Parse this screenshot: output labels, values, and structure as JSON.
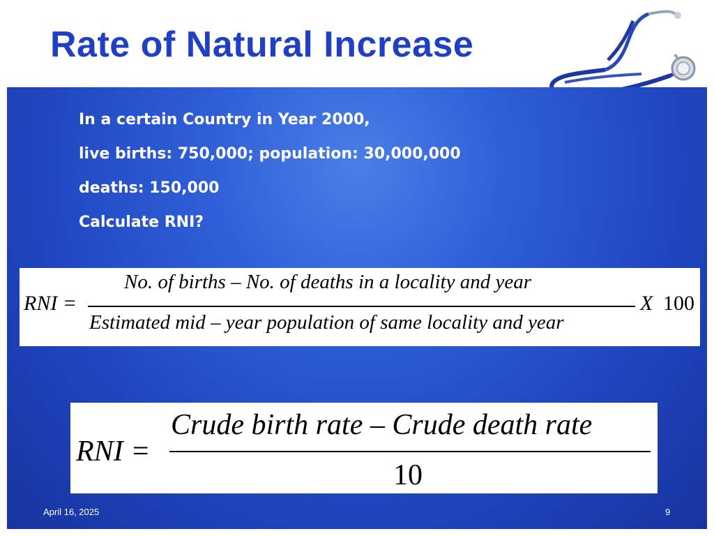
{
  "slide": {
    "title": "Rate of Natural Increase",
    "lines": [
      "In a certain Country in Year 2000,",
      "live births: 750,000; population: 30,000,000",
      "deaths: 150,000",
      "Calculate RNI?"
    ],
    "formula1": {
      "lhs": "RNI =",
      "numerator": "No.  of  births – No.  of  deaths  in  a  locality  and  year",
      "denominator": "Estimated  mid – year  population  of  same  locality  and  year",
      "multiplier_symbol": "X",
      "multiplier_value": "100"
    },
    "formula2": {
      "lhs": "RNI =",
      "numerator": "Crude  birth  rate – Crude  death  rate",
      "denominator": "10"
    },
    "footer": {
      "date": "April 16, 2025",
      "page": "9"
    }
  },
  "colors": {
    "title": "#1f3fc4",
    "panel": "#2f5fd8",
    "text": "#ffffff"
  },
  "icons": [
    "stethoscope-icon"
  ]
}
